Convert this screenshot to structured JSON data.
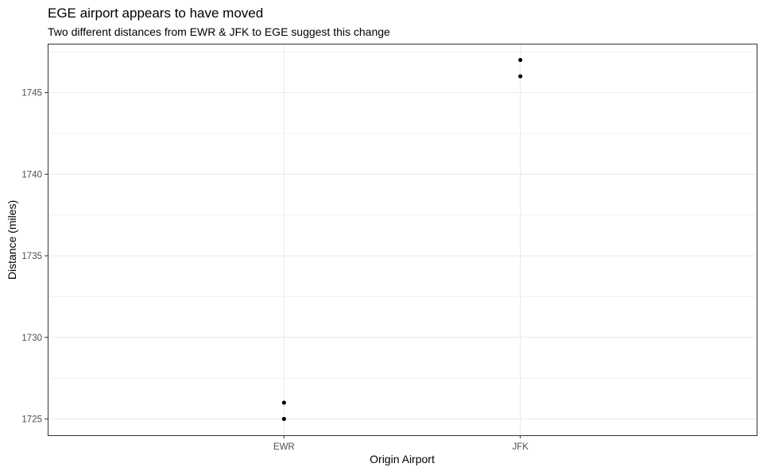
{
  "chart_data": {
    "type": "scatter",
    "title": "EGE airport appears to have moved",
    "subtitle": "Two different distances from EWR & JFK to EGE suggest this change",
    "xlabel": "Origin Airport",
    "ylabel": "Distance (miles)",
    "categories": [
      "EWR",
      "JFK"
    ],
    "points": [
      {
        "x": "EWR",
        "y": 1725
      },
      {
        "x": "EWR",
        "y": 1726
      },
      {
        "x": "JFK",
        "y": 1746
      },
      {
        "x": "JFK",
        "y": 1747
      }
    ],
    "y_ticks": [
      1725,
      1730,
      1735,
      1740,
      1745
    ],
    "ylim": [
      1724,
      1748
    ],
    "grid": true,
    "theme": "bw",
    "point_color": "#000000",
    "grid_color": "#ebebeb",
    "panel_border_color": "#333333"
  }
}
